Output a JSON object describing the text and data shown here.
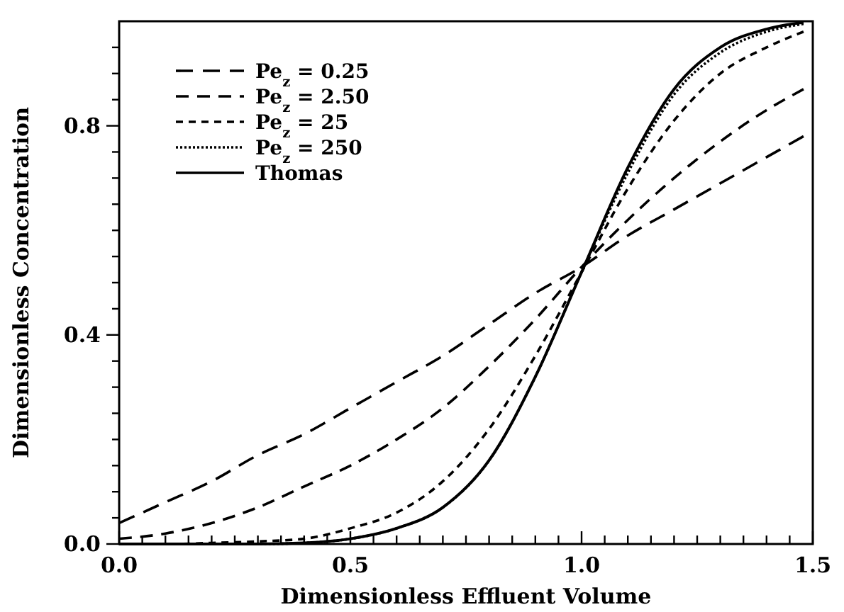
{
  "chart_data": {
    "type": "line",
    "xlabel": "Dimensionless Effluent Volume",
    "ylabel": "Dimensionless Concentration",
    "xlim": [
      0,
      1.5
    ],
    "ylim": [
      0,
      1.0
    ],
    "xticks": [
      {
        "value": 0,
        "label": "0.0"
      },
      {
        "value": 0.05,
        "label": null
      },
      {
        "value": 0.1,
        "label": null
      },
      {
        "value": 0.15,
        "label": null
      },
      {
        "value": 0.2,
        "label": null
      },
      {
        "value": 0.25,
        "label": null
      },
      {
        "value": 0.3,
        "label": null
      },
      {
        "value": 0.35,
        "label": null
      },
      {
        "value": 0.4,
        "label": null
      },
      {
        "value": 0.45,
        "label": null
      },
      {
        "value": 0.5,
        "label": "0.5"
      },
      {
        "value": 0.55,
        "label": null
      },
      {
        "value": 0.6,
        "label": null
      },
      {
        "value": 0.65,
        "label": null
      },
      {
        "value": 0.7,
        "label": null
      },
      {
        "value": 0.75,
        "label": null
      },
      {
        "value": 0.8,
        "label": null
      },
      {
        "value": 0.85,
        "label": null
      },
      {
        "value": 0.9,
        "label": null
      },
      {
        "value": 0.95,
        "label": null
      },
      {
        "value": 1.0,
        "label": "1.0"
      },
      {
        "value": 1.05,
        "label": null
      },
      {
        "value": 1.1,
        "label": null
      },
      {
        "value": 1.15,
        "label": null
      },
      {
        "value": 1.2,
        "label": null
      },
      {
        "value": 1.25,
        "label": null
      },
      {
        "value": 1.3,
        "label": null
      },
      {
        "value": 1.35,
        "label": null
      },
      {
        "value": 1.4,
        "label": null
      },
      {
        "value": 1.45,
        "label": null
      },
      {
        "value": 1.5,
        "label": "1.5"
      }
    ],
    "yticks": [
      {
        "value": 0,
        "label": "0.0"
      },
      {
        "value": 0.05,
        "label": null
      },
      {
        "value": 0.1,
        "label": null
      },
      {
        "value": 0.15,
        "label": null
      },
      {
        "value": 0.2,
        "label": null
      },
      {
        "value": 0.25,
        "label": null
      },
      {
        "value": 0.3,
        "label": null
      },
      {
        "value": 0.35,
        "label": null
      },
      {
        "value": 0.4,
        "label": "0.4"
      },
      {
        "value": 0.45,
        "label": null
      },
      {
        "value": 0.5,
        "label": null
      },
      {
        "value": 0.55,
        "label": null
      },
      {
        "value": 0.6,
        "label": null
      },
      {
        "value": 0.65,
        "label": null
      },
      {
        "value": 0.7,
        "label": null
      },
      {
        "value": 0.75,
        "label": null
      },
      {
        "value": 0.8,
        "label": "0.8"
      },
      {
        "value": 0.85,
        "label": null
      },
      {
        "value": 0.9,
        "label": null
      },
      {
        "value": 0.95,
        "label": null
      }
    ],
    "grid": false,
    "legend": "top left",
    "marker": "none",
    "x": [
      0,
      0.1,
      0.2,
      0.3,
      0.4,
      0.5,
      0.6,
      0.7,
      0.8,
      0.9,
      1.0,
      1.1,
      1.2,
      1.3,
      1.4,
      1.48
    ],
    "series": [
      {
        "name": "Pe$_{z}$ = 0.25",
        "color": "#000000",
        "line_style": "dashed",
        "values": [
          0.04,
          0.08,
          0.12,
          0.17,
          0.21,
          0.26,
          0.31,
          0.36,
          0.42,
          0.48,
          0.53,
          0.59,
          0.64,
          0.69,
          0.74,
          0.78
        ]
      },
      {
        "name": "Pe$_{z}$ = 2.50",
        "color": "#000000",
        "line_style": "dashed",
        "values": [
          0.01,
          0.02,
          0.04,
          0.07,
          0.11,
          0.15,
          0.2,
          0.26,
          0.34,
          0.43,
          0.53,
          0.62,
          0.7,
          0.77,
          0.83,
          0.87
        ]
      },
      {
        "name": "Pe$_{z}$ = 25",
        "color": "#000000",
        "line_style": "dashed",
        "values": [
          0,
          0,
          0.002,
          0.005,
          0.01,
          0.03,
          0.06,
          0.12,
          0.22,
          0.36,
          0.52,
          0.68,
          0.81,
          0.9,
          0.95,
          0.98
        ]
      },
      {
        "name": "Pe$_{z}$ = 250",
        "color": "#000000",
        "line_style": "dotted",
        "values": [
          0,
          0,
          0,
          0,
          0.002,
          0.01,
          0.03,
          0.07,
          0.16,
          0.32,
          0.52,
          0.71,
          0.86,
          0.94,
          0.98,
          0.995
        ]
      },
      {
        "name": "Thomas",
        "color": "#000000",
        "line_style": "solid",
        "values": [
          0,
          0,
          0,
          0,
          0.002,
          0.01,
          0.03,
          0.07,
          0.16,
          0.32,
          0.52,
          0.72,
          0.87,
          0.95,
          0.985,
          0.998
        ]
      }
    ]
  }
}
